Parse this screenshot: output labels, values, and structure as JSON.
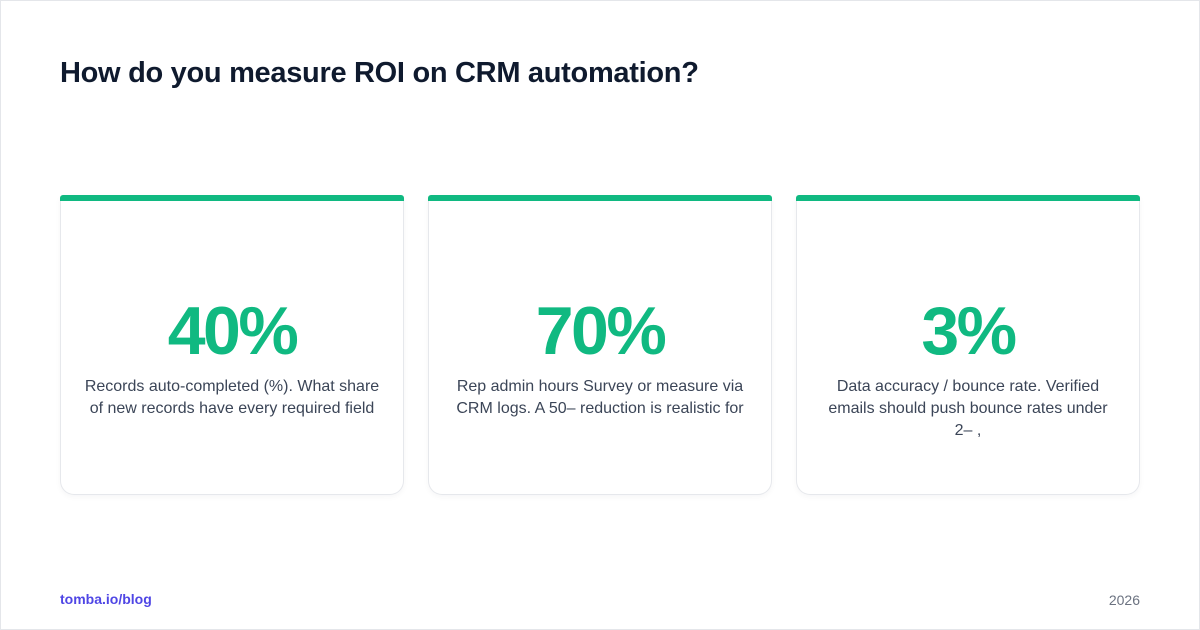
{
  "page": {
    "title": "How do you measure ROI on CRM automation?"
  },
  "cards": [
    {
      "value": "40%",
      "description": "Records auto-completed (%). What share of new records have every required field"
    },
    {
      "value": "70%",
      "description": "Rep admin hours Survey or measure via CRM logs. A 50– reduction is realistic for"
    },
    {
      "value": "3%",
      "description": "Data accuracy / bounce rate. Verified emails should push bounce rates under 2– ,"
    }
  ],
  "footer": {
    "link": "tomba.io/blog",
    "year": "2026"
  },
  "colors": {
    "accent": "#10b981",
    "title": "#0f1a2e",
    "link": "#4f46e5",
    "muted": "#6b7280"
  }
}
